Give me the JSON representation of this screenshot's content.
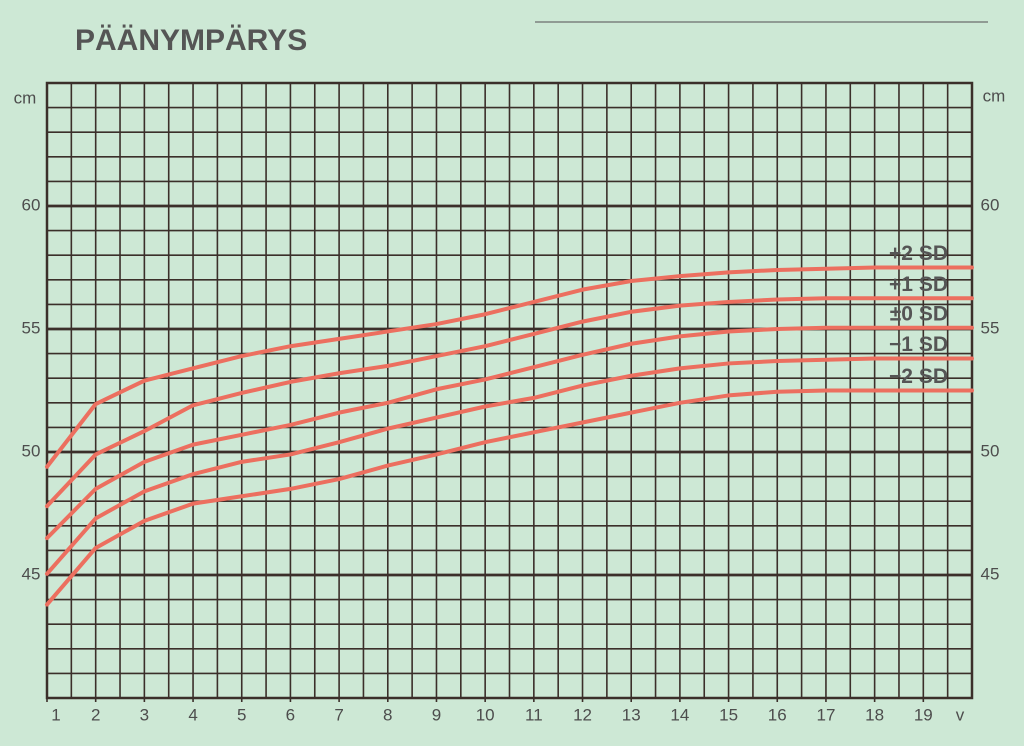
{
  "chart_data": {
    "type": "line",
    "title": "PÄÄNYMPÄRYS",
    "y_label": "cm",
    "x_label": "v",
    "x": [
      1,
      2,
      3,
      4,
      5,
      6,
      7,
      8,
      9,
      10,
      11,
      12,
      13,
      14,
      15,
      16,
      17,
      18,
      19,
      20
    ],
    "series": [
      {
        "name": "+2 SD",
        "color": "#ec6f5f",
        "values": [
          49.4,
          51.95,
          52.9,
          53.4,
          53.9,
          54.3,
          54.6,
          54.9,
          55.2,
          55.6,
          56.1,
          56.6,
          56.95,
          57.15,
          57.3,
          57.4,
          57.45,
          57.5,
          57.5,
          57.5
        ]
      },
      {
        "name": "+1 SD",
        "color": "#ec6f5f",
        "values": [
          47.8,
          49.9,
          50.85,
          51.9,
          52.4,
          52.85,
          53.2,
          53.5,
          53.9,
          54.3,
          54.8,
          55.3,
          55.7,
          55.95,
          56.1,
          56.2,
          56.25,
          56.25,
          56.25,
          56.25
        ]
      },
      {
        "name": "±0 SD",
        "color": "#ec6f5f",
        "values": [
          46.5,
          48.5,
          49.6,
          50.3,
          50.7,
          51.1,
          51.6,
          52.0,
          52.55,
          52.95,
          53.45,
          53.95,
          54.4,
          54.7,
          54.9,
          55.0,
          55.05,
          55.05,
          55.05,
          55.05
        ]
      },
      {
        "name": "−1 SD",
        "color": "#ec6f5f",
        "values": [
          45.05,
          47.3,
          48.4,
          49.1,
          49.6,
          49.9,
          50.4,
          50.95,
          51.4,
          51.85,
          52.2,
          52.7,
          53.1,
          53.4,
          53.6,
          53.7,
          53.75,
          53.8,
          53.8,
          53.8
        ]
      },
      {
        "name": "−2 SD",
        "color": "#ec6f5f",
        "values": [
          43.8,
          46.1,
          47.2,
          47.9,
          48.2,
          48.5,
          48.9,
          49.45,
          49.9,
          50.4,
          50.8,
          51.2,
          51.6,
          52.0,
          52.3,
          52.45,
          52.5,
          52.5,
          52.5,
          52.5
        ]
      }
    ],
    "xlim": [
      1,
      20
    ],
    "xticks": [
      1,
      2,
      3,
      4,
      5,
      6,
      7,
      8,
      9,
      10,
      11,
      12,
      13,
      14,
      15,
      16,
      17,
      18,
      19
    ],
    "ylim": [
      40,
      65
    ],
    "yticks": [
      45,
      50,
      55,
      60
    ],
    "grid": true,
    "minor_grid": {
      "x": 0.5,
      "y": 1
    }
  }
}
